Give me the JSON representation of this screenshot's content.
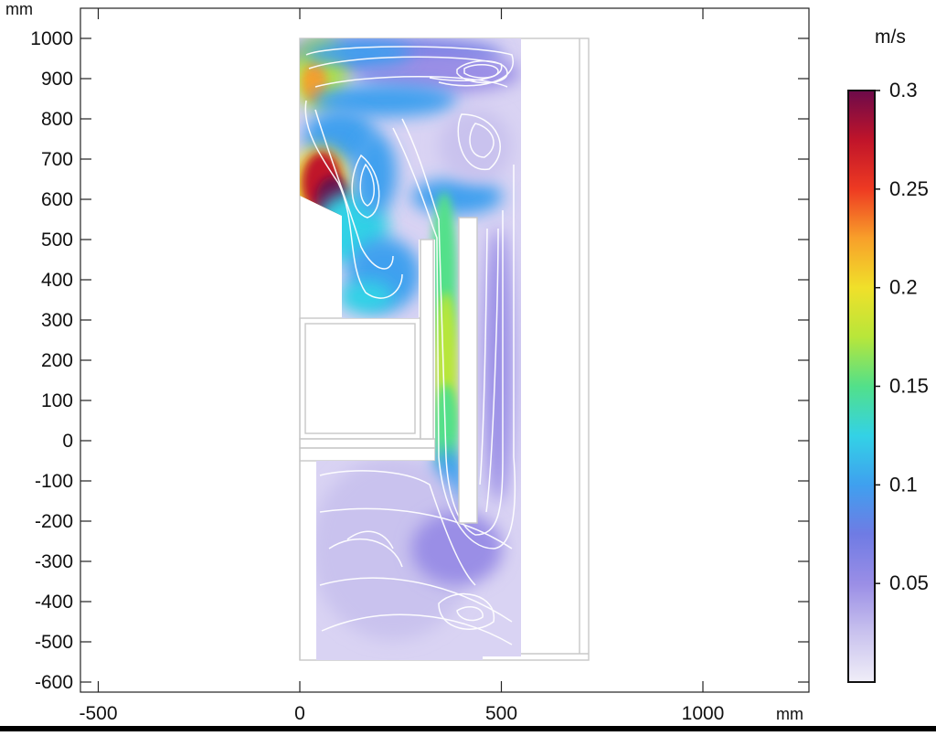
{
  "chart_data": {
    "type": "heatmap",
    "title": "",
    "xunit": "mm",
    "yunit": "mm",
    "xlim": [
      -500,
      1250
    ],
    "ylim": [
      -600,
      1000
    ],
    "x_ticks": [
      -500,
      0,
      500,
      1000
    ],
    "y_ticks": [
      1000,
      900,
      800,
      700,
      600,
      500,
      400,
      300,
      200,
      100,
      0,
      -100,
      -200,
      -300,
      -400,
      -500,
      -600
    ],
    "colorbar": {
      "unit": "m/s",
      "range": [
        0,
        0.3
      ],
      "ticks": [
        {
          "value": 0.3,
          "label": "0.3"
        },
        {
          "value": 0.25,
          "label": "0.25"
        },
        {
          "value": 0.2,
          "label": "0.2"
        },
        {
          "value": 0.15,
          "label": "0.15"
        },
        {
          "value": 0.1,
          "label": "0.1"
        },
        {
          "value": 0.05,
          "label": "0.05"
        }
      ],
      "colors": [
        "#f0eef8",
        "#c9c2ee",
        "#9a8ee6",
        "#6f7be4",
        "#3fa0ef",
        "#33d2e6",
        "#52e08a",
        "#b8e63a",
        "#f0e02a",
        "#f8a02a",
        "#ee3a22",
        "#c0142a",
        "#6c0a4a"
      ]
    },
    "grid": false,
    "speed_regions": [
      {
        "name": "top-left corner jet",
        "x": 15,
        "y": 910,
        "speed": 0.2
      },
      {
        "name": "left inlet jet",
        "x": 40,
        "y": 680,
        "speed": 0.28
      },
      {
        "name": "upper loop",
        "x": 250,
        "y": 920,
        "speed": 0.12
      },
      {
        "name": "central channel",
        "x": 370,
        "y": 200,
        "speed": 0.18
      },
      {
        "name": "lower recirculation",
        "x": 260,
        "y": -350,
        "speed": 0.04
      }
    ]
  }
}
